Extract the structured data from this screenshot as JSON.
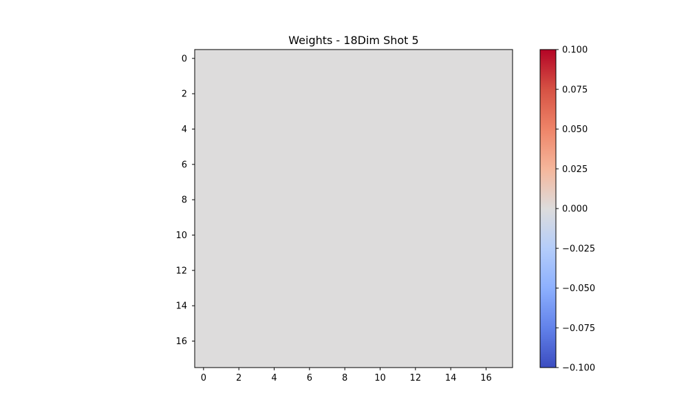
{
  "chart_data": {
    "type": "heatmap",
    "title": "Weights - 18Dim Shot 5",
    "rows": 18,
    "cols": 18,
    "fill_value": 0.0,
    "fill_color": "#dddcdc",
    "x_ticks": [
      "0",
      "2",
      "4",
      "6",
      "8",
      "10",
      "12",
      "14",
      "16"
    ],
    "y_ticks": [
      "0",
      "2",
      "4",
      "6",
      "8",
      "10",
      "12",
      "14",
      "16"
    ],
    "colorbar": {
      "colormap": "coolwarm",
      "min": -0.1,
      "max": 0.1,
      "ticks": [
        "0.100",
        "0.075",
        "0.050",
        "0.025",
        "0.000",
        "−0.025",
        "−0.050",
        "−0.075",
        "−0.100"
      ],
      "stops": [
        {
          "offset": 0.0,
          "color": "#b40426"
        },
        {
          "offset": 0.125,
          "color": "#d65244"
        },
        {
          "offset": 0.25,
          "color": "#ee8468"
        },
        {
          "offset": 0.375,
          "color": "#f5b69b"
        },
        {
          "offset": 0.5,
          "color": "#dddcdc"
        },
        {
          "offset": 0.625,
          "color": "#b4cdfa"
        },
        {
          "offset": 0.75,
          "color": "#8db0fe"
        },
        {
          "offset": 0.875,
          "color": "#6282ea"
        },
        {
          "offset": 1.0,
          "color": "#3b4cc0"
        }
      ]
    }
  }
}
